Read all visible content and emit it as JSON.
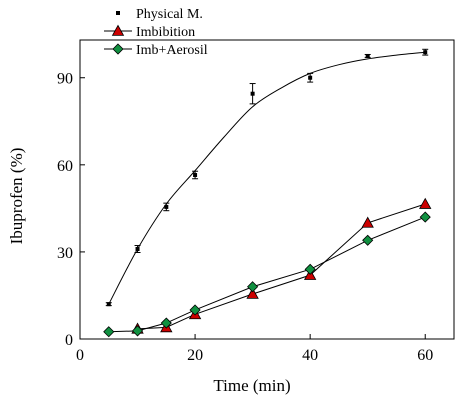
{
  "chart_data": {
    "type": "scatter",
    "title": "",
    "xlabel": "Time (min)",
    "ylabel": "Ibuprofen (%)",
    "xlim": [
      0,
      65
    ],
    "ylim": [
      0,
      103
    ],
    "xticks": [
      0,
      20,
      40,
      60
    ],
    "yticks": [
      0,
      30,
      60,
      90
    ],
    "grid": false,
    "legend_position": "top-left",
    "series": [
      {
        "name": "Physical M.",
        "marker": "square",
        "color": "#000000",
        "fit_curve": true,
        "x": [
          5,
          10,
          15,
          20,
          30,
          40,
          50,
          60
        ],
        "y": [
          12,
          31,
          45.5,
          56.5,
          84.5,
          90,
          97.5,
          98.8
        ],
        "error": [
          0.5,
          1.2,
          1.3,
          1.3,
          3.5,
          1.5,
          0.5,
          1.0
        ],
        "fit_x": [
          5,
          10,
          15,
          20,
          25,
          30,
          35,
          40,
          45,
          50,
          55,
          60
        ],
        "fit_y": [
          12,
          31,
          46.5,
          58,
          69.5,
          80,
          86.5,
          91.5,
          94.5,
          96.5,
          97.8,
          98.8
        ]
      },
      {
        "name": "Imbibition",
        "marker": "triangle",
        "color": "#cc0000",
        "x": [
          10,
          15,
          20,
          30,
          40,
          50,
          60
        ],
        "y": [
          3.5,
          4,
          8.5,
          15.5,
          22,
          40,
          46.5
        ]
      },
      {
        "name": "Imb+Aerosil",
        "marker": "diamond",
        "color": "#109040",
        "x": [
          5,
          10,
          15,
          20,
          30,
          40,
          50,
          60
        ],
        "y": [
          2.5,
          2.8,
          5.5,
          10,
          18,
          24,
          34,
          42
        ]
      }
    ]
  }
}
